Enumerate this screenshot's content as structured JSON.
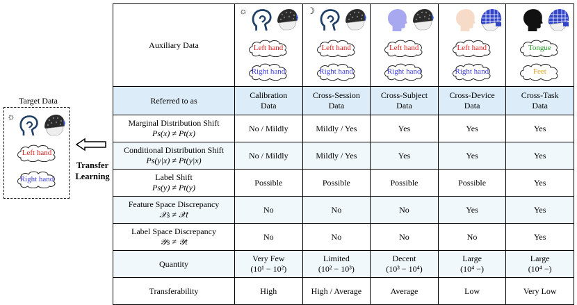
{
  "target": {
    "title": "Target Data",
    "cloud_top": "Left hand",
    "cloud_bottom": "Right hand"
  },
  "transfer_label": [
    "Transfer",
    "Learning"
  ],
  "table": {
    "aux_header": "Auxiliary Data",
    "aux_columns": [
      {
        "icon_a": "outline-head-icon",
        "icon_b": "eeg-cap-icon",
        "time_icon": "sun-icon",
        "top": "Left hand",
        "bottom": "Right hand",
        "head_color": "#1f3f66"
      },
      {
        "icon_a": "outline-head-icon",
        "icon_b": "eeg-cap-icon",
        "time_icon": "moon-icon",
        "top": "Left hand",
        "bottom": "Right hand",
        "head_color": "#1f3f66"
      },
      {
        "icon_a": "lavender-head-icon",
        "icon_b": "eeg-cap-icon",
        "time_icon": "",
        "top": "Left hand",
        "bottom": "Right hand",
        "head_color": "#a8a8f0"
      },
      {
        "icon_a": "peach-head-icon",
        "icon_b": "blue-cap-icon",
        "time_icon": "",
        "top": "Left hand",
        "bottom": "Right hand",
        "head_color": "#f6dcc8"
      },
      {
        "icon_a": "black-head-icon",
        "icon_b": "blue-cap-icon",
        "time_icon": "",
        "top": "Tongue",
        "bottom": "Feet",
        "head_color": "#111111"
      }
    ],
    "rows": [
      {
        "label": [
          "Referred to as"
        ],
        "cells": [
          [
            "Calibration",
            "Data"
          ],
          [
            "Cross-Session",
            "Data"
          ],
          [
            "Cross-Subject",
            "Data"
          ],
          [
            "Cross-Device",
            "Data"
          ],
          [
            "Cross-Task",
            "Data"
          ]
        ],
        "style": "blue"
      },
      {
        "label": [
          "Marginal Distribution Shift",
          "Ps(x) ≠ Pt(x)"
        ],
        "cells": [
          [
            "No / Mildly"
          ],
          [
            "Mildly / Yes"
          ],
          [
            "Yes"
          ],
          [
            "Yes"
          ],
          [
            "Yes"
          ]
        ],
        "style": "plain"
      },
      {
        "label": [
          "Conditional Distribution Shift",
          "Ps(y|x) ≠ Pt(y|x)"
        ],
        "cells": [
          [
            "No / Mildly"
          ],
          [
            "Mildly / Yes"
          ],
          [
            "Yes"
          ],
          [
            "Yes"
          ],
          [
            "Yes"
          ]
        ],
        "style": "alt"
      },
      {
        "label": [
          "Label Shift",
          "Ps(y) ≠ Pt(y)"
        ],
        "cells": [
          [
            "Possible"
          ],
          [
            "Possible"
          ],
          [
            "Possible"
          ],
          [
            "Possible"
          ],
          [
            "Yes"
          ]
        ],
        "style": "plain"
      },
      {
        "label": [
          "Feature Space Discrepancy",
          "𝒳s ≠ 𝒳t"
        ],
        "cells": [
          [
            "No"
          ],
          [
            "No"
          ],
          [
            "No"
          ],
          [
            "Yes"
          ],
          [
            "Yes"
          ]
        ],
        "style": "alt"
      },
      {
        "label": [
          "Label Space Discrepancy",
          "𝒴s ≠ 𝒴t"
        ],
        "cells": [
          [
            "No"
          ],
          [
            "No"
          ],
          [
            "No"
          ],
          [
            "No"
          ],
          [
            "Yes"
          ]
        ],
        "style": "plain"
      },
      {
        "label": [
          "Quantity"
        ],
        "cells": [
          [
            "Very Few",
            "(10¹ − 10²)"
          ],
          [
            "Limited",
            "(10² − 10³)"
          ],
          [
            "Decent",
            "(10³ − 10⁴)"
          ],
          [
            "Large",
            "(10⁴ −)"
          ],
          [
            "Large",
            "(10⁴ −)"
          ]
        ],
        "style": "alt"
      },
      {
        "label": [
          "Transferability"
        ],
        "cells": [
          [
            "High"
          ],
          [
            "High / Average"
          ],
          [
            "Average"
          ],
          [
            "Low"
          ],
          [
            "Very Low"
          ]
        ],
        "style": "plain"
      }
    ]
  }
}
